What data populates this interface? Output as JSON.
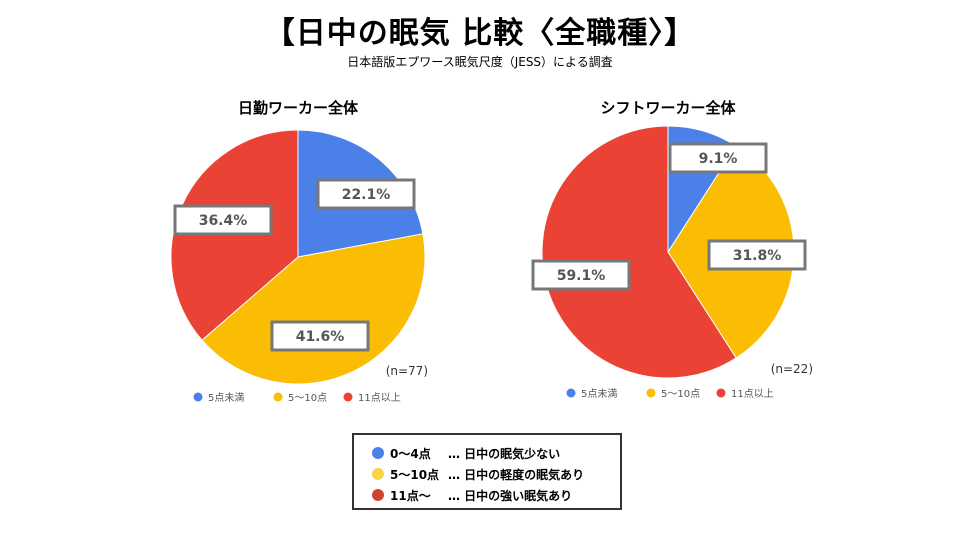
{
  "title": "【日中の眠気 比較〈全職種〉】",
  "subtitle": "日本語版エプワース眠気尺度（JESS）による調査",
  "colors": {
    "blue": "#4a80e8",
    "yellow": "#fbbc04",
    "red": "#ea4335"
  },
  "chart_data": [
    {
      "type": "pie",
      "title": "日勤ワーカー全体",
      "n_label": "(n=77)",
      "legend_position": "bottom",
      "categories": [
        "5点未満",
        "5〜10点",
        "11点以上"
      ],
      "values": [
        22.1,
        41.6,
        36.4
      ],
      "value_labels": [
        "22.1%",
        "41.6%",
        "36.4%"
      ]
    },
    {
      "type": "pie",
      "title": "シフトワーカー全体",
      "n_label": "(n=22)",
      "legend_position": "bottom",
      "categories": [
        "5点未満",
        "5〜10点",
        "11点以上"
      ],
      "values": [
        9.1,
        31.8,
        59.1
      ],
      "value_labels": [
        "9.1%",
        "31.8%",
        "59.1%"
      ]
    }
  ],
  "key": [
    {
      "range": "0〜4点",
      "desc": "… 日中の眠気少ない",
      "color": "#4a80e8"
    },
    {
      "range": "5〜10点",
      "desc": "… 日中の軽度の眠気あり",
      "color": "#fbd34a"
    },
    {
      "range": "11点〜",
      "desc": "… 日中の強い眠気あり",
      "color": "#cc4433"
    }
  ]
}
